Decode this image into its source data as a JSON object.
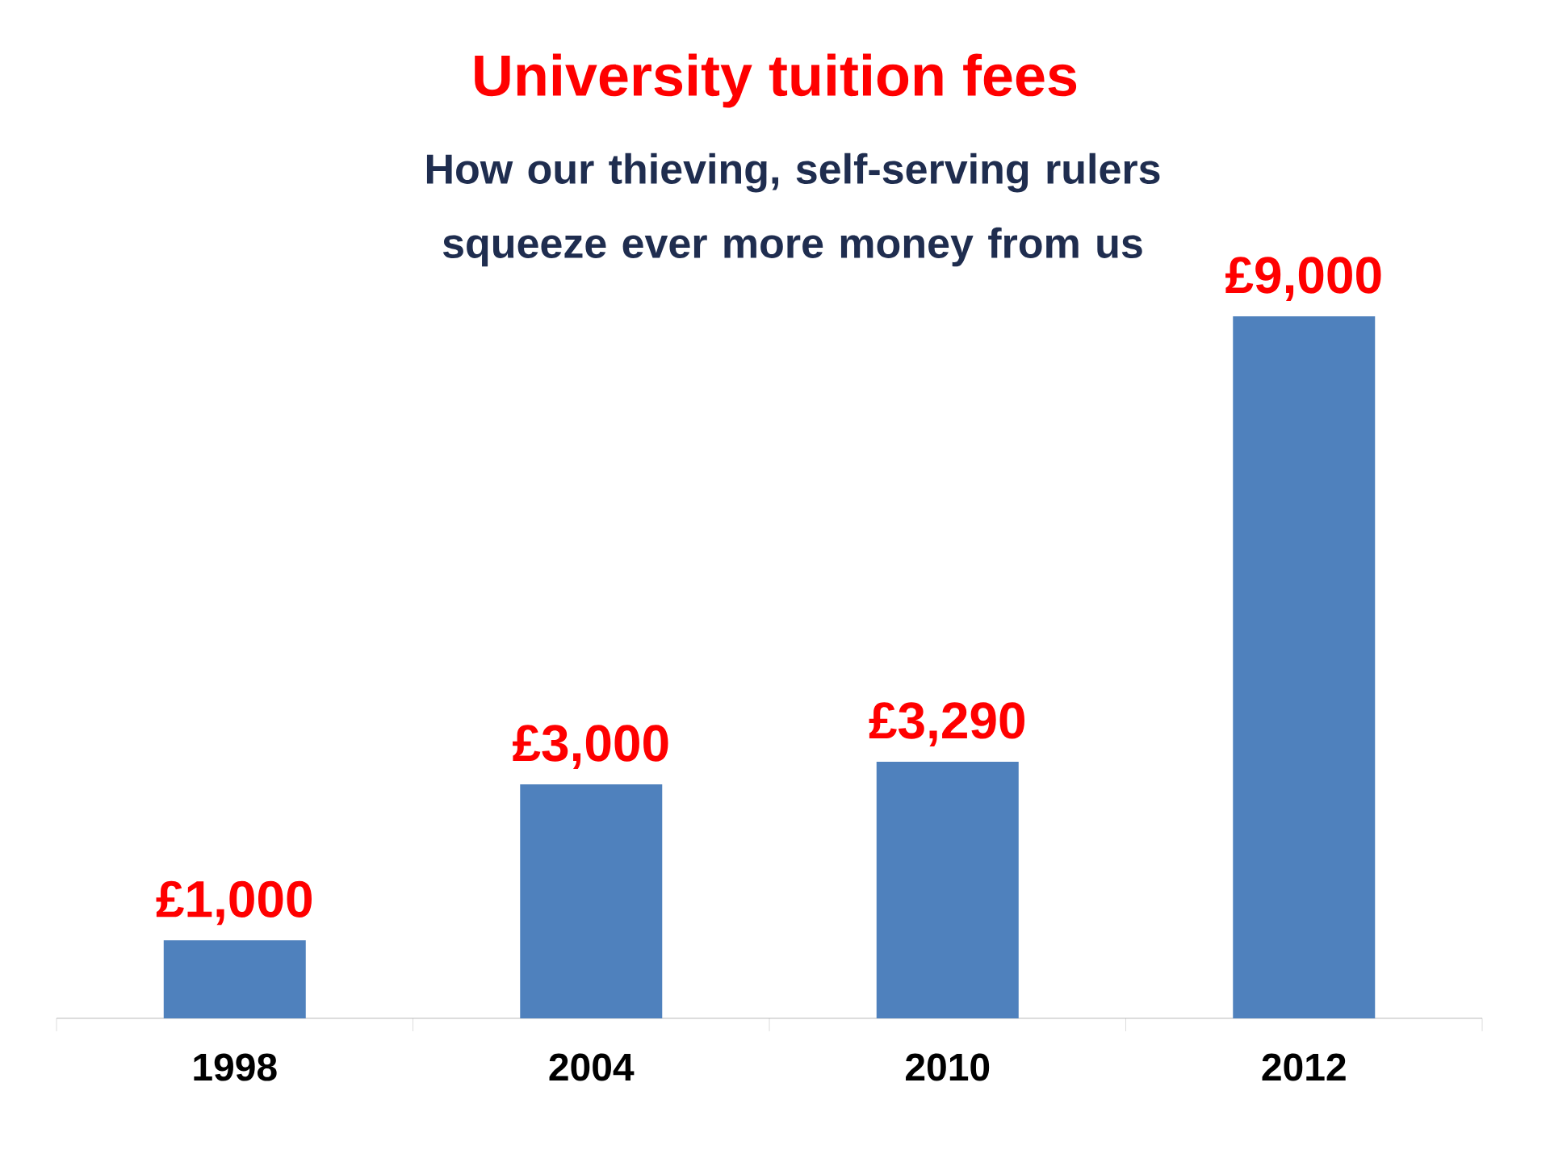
{
  "chart_data": {
    "type": "bar",
    "title": "University tuition fees",
    "subtitle": "How our thieving, self-serving rulers squeeze ever more money from us",
    "categories": [
      "1998",
      "2004",
      "2010",
      "2012"
    ],
    "values": [
      1000,
      3000,
      3290,
      9000
    ],
    "value_labels": [
      "£1,000",
      "£3,000",
      "£3,290",
      "£9,000"
    ],
    "color": "#4f81bd"
  }
}
